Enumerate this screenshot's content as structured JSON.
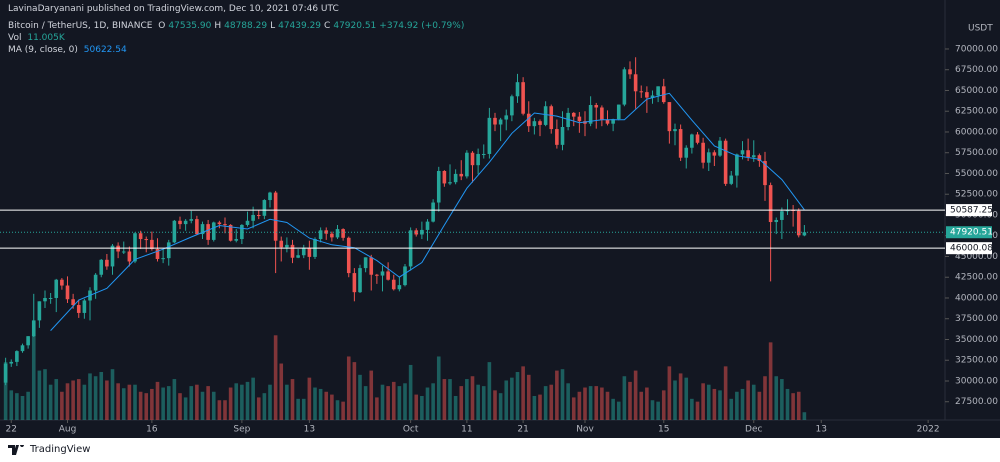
{
  "chart_data": {
    "type": "candlestick",
    "attribution": "LavinaDaryanani published on TradingView.com, Dec 10, 2021 07:46 UTC",
    "symbol": "Bitcoin / TetherUS, 1D, BINANCE",
    "ohlc_legend": [
      {
        "label": "O",
        "value": "47535.90"
      },
      {
        "label": "H",
        "value": "48788.29"
      },
      {
        "label": "L",
        "value": "47439.29"
      },
      {
        "label": "C",
        "value": "47920.51"
      }
    ],
    "change": "+374.92 (+0.79%)",
    "volume_name": "Vol",
    "volume_value": "11.005K",
    "currency": "USDT",
    "footer": "TradingView",
    "up_color": "#26a69a",
    "down_color": "#ef5350",
    "x": [
      "2021-07-21",
      "2021-07-22",
      "2021-07-23",
      "2021-07-24",
      "2021-07-25",
      "2021-07-26",
      "2021-07-27",
      "2021-07-28",
      "2021-07-29",
      "2021-07-30",
      "2021-07-31",
      "2021-08-01",
      "2021-08-02",
      "2021-08-03",
      "2021-08-04",
      "2021-08-05",
      "2021-08-06",
      "2021-08-07",
      "2021-08-08",
      "2021-08-09",
      "2021-08-10",
      "2021-08-11",
      "2021-08-12",
      "2021-08-13",
      "2021-08-14",
      "2021-08-15",
      "2021-08-16",
      "2021-08-17",
      "2021-08-18",
      "2021-08-19",
      "2021-08-20",
      "2021-08-21",
      "2021-08-22",
      "2021-08-23",
      "2021-08-24",
      "2021-08-25",
      "2021-08-26",
      "2021-08-27",
      "2021-08-28",
      "2021-08-29",
      "2021-08-30",
      "2021-08-31",
      "2021-09-01",
      "2021-09-02",
      "2021-09-03",
      "2021-09-04",
      "2021-09-05",
      "2021-09-06",
      "2021-09-07",
      "2021-09-08",
      "2021-09-09",
      "2021-09-10",
      "2021-09-11",
      "2021-09-12",
      "2021-09-13",
      "2021-09-14",
      "2021-09-15",
      "2021-09-16",
      "2021-09-17",
      "2021-09-18",
      "2021-09-19",
      "2021-09-20",
      "2021-09-21",
      "2021-09-22",
      "2021-09-23",
      "2021-09-24",
      "2021-09-25",
      "2021-09-26",
      "2021-09-27",
      "2021-09-28",
      "2021-09-29",
      "2021-09-30",
      "2021-10-01",
      "2021-10-02",
      "2021-10-03",
      "2021-10-04",
      "2021-10-05",
      "2021-10-06",
      "2021-10-07",
      "2021-10-08",
      "2021-10-09",
      "2021-10-10",
      "2021-10-11",
      "2021-10-12",
      "2021-10-13",
      "2021-10-14",
      "2021-10-15",
      "2021-10-16",
      "2021-10-17",
      "2021-10-18",
      "2021-10-19",
      "2021-10-20",
      "2021-10-21",
      "2021-10-22",
      "2021-10-23",
      "2021-10-24",
      "2021-10-25",
      "2021-10-26",
      "2021-10-27",
      "2021-10-28",
      "2021-10-29",
      "2021-10-30",
      "2021-10-31",
      "2021-11-01",
      "2021-11-02",
      "2021-11-03",
      "2021-11-04",
      "2021-11-05",
      "2021-11-06",
      "2021-11-07",
      "2021-11-08",
      "2021-11-09",
      "2021-11-10",
      "2021-11-11",
      "2021-11-12",
      "2021-11-13",
      "2021-11-14",
      "2021-11-15",
      "2021-11-16",
      "2021-11-17",
      "2021-11-18",
      "2021-11-19",
      "2021-11-20",
      "2021-11-21",
      "2021-11-22",
      "2021-11-23",
      "2021-11-24",
      "2021-11-25",
      "2021-11-26",
      "2021-11-27",
      "2021-11-28",
      "2021-11-29",
      "2021-11-30",
      "2021-12-01",
      "2021-12-02",
      "2021-12-03",
      "2021-12-04",
      "2021-12-05",
      "2021-12-06",
      "2021-12-07",
      "2021-12-08",
      "2021-12-09",
      "2021-12-10"
    ],
    "open": [
      29800,
      32100,
      32300,
      33600,
      34300,
      35400,
      37300,
      39600,
      40000,
      40000,
      42200,
      41500,
      39850,
      39150,
      38200,
      39700,
      40900,
      42800,
      44600,
      43800,
      46300,
      45600,
      45600,
      44400,
      47800,
      47100,
      47000,
      45900,
      44700,
      44800,
      46700,
      49300,
      48900,
      49300,
      49500,
      47700,
      48900,
      47000,
      49100,
      48900,
      48800,
      46900,
      47100,
      48800,
      49300,
      50000,
      49900,
      51800,
      52700,
      46900,
      46100,
      46400,
      44850,
      45150,
      46050,
      44950,
      47100,
      48150,
      47750,
      47300,
      48300,
      47250,
      43000,
      40700,
      43600,
      44900,
      42800,
      42700,
      43200,
      42200,
      41050,
      41550,
      43800,
      48150,
      47650,
      48200,
      49200,
      51500,
      55300,
      53800,
      53950,
      54950,
      54650,
      57500,
      56000,
      57350,
      57350,
      61700,
      60900,
      61500,
      62000,
      64300,
      66000,
      62200,
      60700,
      61300,
      60850,
      63100,
      60350,
      58450,
      60600,
      62300,
      61850,
      61300,
      61000,
      63250,
      62950,
      61450,
      61000,
      61550,
      63300,
      67550,
      66950,
      64900,
      64800,
      64150,
      64400,
      65500,
      63600,
      60100,
      60350,
      56900,
      58100,
      59700,
      58700,
      56300,
      57550,
      57150,
      58950,
      53750,
      54750,
      57300,
      57800,
      56950,
      57200,
      56500,
      53600,
      49150,
      49400,
      50450,
      50600,
      50500,
      47535.9
    ],
    "high": [
      32800,
      32600,
      33700,
      34500,
      35400,
      40500,
      39600,
      40900,
      40600,
      42300,
      42400,
      42600,
      40500,
      39800,
      39900,
      41300,
      43000,
      44700,
      45300,
      46500,
      46700,
      46800,
      46200,
      47900,
      48100,
      47400,
      48000,
      47200,
      46000,
      47000,
      49400,
      49800,
      49500,
      50500,
      49900,
      49200,
      49400,
      49200,
      49300,
      49700,
      48900,
      48300,
      48900,
      50400,
      51000,
      50600,
      51900,
      52800,
      52900,
      47400,
      47300,
      47000,
      45900,
      46400,
      46900,
      47300,
      48500,
      48500,
      48000,
      48800,
      48400,
      47400,
      43600,
      44000,
      44900,
      45200,
      42900,
      43900,
      44300,
      42800,
      42600,
      44100,
      48500,
      48400,
      49200,
      49500,
      51900,
      55800,
      55400,
      56100,
      55500,
      56600,
      57800,
      57700,
      58000,
      58500,
      62900,
      62300,
      61700,
      62700,
      64500,
      67000,
      66600,
      63700,
      61700,
      61500,
      63700,
      63300,
      61500,
      62500,
      62900,
      62400,
      62400,
      62500,
      64300,
      63500,
      63200,
      62600,
      61600,
      63300,
      67800,
      68500,
      69000,
      65600,
      65500,
      65000,
      65500,
      66400,
      63600,
      61000,
      60900,
      58400,
      59800,
      60000,
      59300,
      58000,
      57800,
      59400,
      59200,
      55300,
      57400,
      58900,
      59200,
      59000,
      57400,
      57600,
      53900,
      49700,
      50900,
      51900,
      51200,
      50800,
      48788.29
    ],
    "low": [
      29500,
      31700,
      31800,
      33400,
      33900,
      35300,
      36400,
      38800,
      39300,
      38300,
      41000,
      39400,
      38700,
      37600,
      37500,
      37300,
      39900,
      42500,
      43400,
      42800,
      44800,
      45300,
      43800,
      44200,
      45900,
      45500,
      45700,
      44400,
      44200,
      43900,
      46600,
      48300,
      48100,
      49000,
      47600,
      47100,
      46400,
      46800,
      48400,
      47800,
      46800,
      46700,
      46500,
      48600,
      48400,
      49500,
      49500,
      50900,
      43000,
      44400,
      45500,
      44200,
      44800,
      44800,
      43400,
      44700,
      46700,
      47000,
      46800,
      47100,
      46900,
      42500,
      39600,
      40600,
      43100,
      40900,
      41700,
      40800,
      42100,
      40900,
      40800,
      41400,
      43300,
      47400,
      47100,
      46900,
      49100,
      50400,
      53400,
      53600,
      53700,
      54200,
      54400,
      53900,
      54900,
      56800,
      56800,
      60100,
      58900,
      60200,
      61300,
      63500,
      62000,
      60000,
      59700,
      59500,
      60700,
      59800,
      58000,
      57800,
      60200,
      60700,
      59900,
      59500,
      60700,
      60400,
      60700,
      60800,
      60100,
      61400,
      63100,
      66400,
      62800,
      64100,
      62300,
      63400,
      63600,
      63400,
      58600,
      58400,
      56500,
      55600,
      57400,
      58500,
      55600,
      55300,
      55900,
      57000,
      53500,
      53600,
      53300,
      56700,
      56500,
      56400,
      55800,
      51700,
      42000,
      47700,
      47100,
      50000,
      48600,
      47300,
      47439.29
    ],
    "close": [
      32100,
      32300,
      33600,
      34300,
      35400,
      37300,
      39600,
      40000,
      40000,
      42200,
      41500,
      39850,
      39150,
      38200,
      39700,
      40900,
      42800,
      44600,
      43800,
      46300,
      45600,
      45600,
      44400,
      47800,
      47100,
      47000,
      45900,
      44700,
      44800,
      46700,
      49300,
      48900,
      49300,
      49500,
      47700,
      48900,
      47000,
      49100,
      48900,
      48800,
      46900,
      47100,
      48800,
      49300,
      50000,
      49900,
      51800,
      52700,
      46900,
      46100,
      46400,
      44850,
      45150,
      46050,
      44950,
      47100,
      48150,
      47750,
      47300,
      48300,
      47250,
      43000,
      40700,
      43600,
      44900,
      42800,
      42700,
      43200,
      42200,
      41050,
      41550,
      43800,
      48150,
      47650,
      48200,
      49200,
      51500,
      55300,
      53800,
      53950,
      54950,
      54650,
      57500,
      56000,
      57350,
      57350,
      61700,
      60900,
      61500,
      62000,
      64300,
      66000,
      62200,
      60700,
      61300,
      60850,
      63100,
      60350,
      58450,
      60600,
      62300,
      61850,
      61300,
      61000,
      63250,
      62950,
      61450,
      61000,
      61550,
      63300,
      67550,
      66950,
      64900,
      64800,
      64150,
      64400,
      65500,
      63600,
      60100,
      60350,
      56900,
      58100,
      59700,
      58700,
      56300,
      57550,
      57150,
      58950,
      53750,
      54750,
      57300,
      57800,
      56950,
      57200,
      56500,
      53600,
      49150,
      49400,
      50450,
      50600,
      50500,
      47550,
      47920.51
    ],
    "volume": [
      82,
      42,
      38,
      34,
      40,
      120,
      70,
      72,
      50,
      58,
      40,
      52,
      56,
      58,
      50,
      66,
      62,
      68,
      56,
      72,
      52,
      45,
      50,
      50,
      40,
      38,
      44,
      54,
      46,
      48,
      58,
      38,
      32,
      48,
      50,
      40,
      48,
      40,
      28,
      28,
      46,
      52,
      50,
      54,
      60,
      32,
      38,
      50,
      120,
      80,
      50,
      58,
      30,
      30,
      60,
      46,
      44,
      40,
      36,
      28,
      26,
      90,
      82,
      64,
      48,
      70,
      32,
      50,
      48,
      54,
      48,
      52,
      78,
      36,
      34,
      46,
      52,
      90,
      58,
      58,
      34,
      48,
      58,
      62,
      50,
      48,
      82,
      42,
      38,
      56,
      60,
      68,
      76,
      64,
      34,
      36,
      48,
      50,
      70,
      72,
      52,
      32,
      40,
      46,
      48,
      48,
      46,
      40,
      30,
      26,
      62,
      54,
      70,
      40,
      46,
      28,
      26,
      42,
      76,
      56,
      66,
      60,
      30,
      26,
      52,
      50,
      44,
      42,
      76,
      30,
      40,
      44,
      56,
      50,
      40,
      62,
      110,
      62,
      58,
      44,
      38,
      40,
      11.005
    ],
    "ma": {
      "name": "MA (9, close, 0)",
      "value_text": "50622.54",
      "color": "#2196f3",
      "x": [
        "2021-07-29",
        "2021-08-03",
        "2021-08-08",
        "2021-08-13",
        "2021-08-18",
        "2021-08-23",
        "2021-08-28",
        "2021-09-02",
        "2021-09-06",
        "2021-09-09",
        "2021-09-13",
        "2021-09-17",
        "2021-09-21",
        "2021-09-25",
        "2021-09-29",
        "2021-10-03",
        "2021-10-07",
        "2021-10-11",
        "2021-10-15",
        "2021-10-19",
        "2021-10-23",
        "2021-10-27",
        "2021-10-31",
        "2021-11-04",
        "2021-11-08",
        "2021-11-12",
        "2021-11-16",
        "2021-11-20",
        "2021-11-24",
        "2021-11-28",
        "2021-12-02",
        "2021-12-06",
        "2021-12-10"
      ],
      "values": [
        36067,
        39756,
        41167,
        44644,
        45878,
        47344,
        48733,
        48311,
        49478,
        49100,
        47211,
        46411,
        46056,
        44506,
        42522,
        44278,
        48794,
        53228,
        56361,
        59844,
        62289,
        61917,
        61122,
        61461,
        61483,
        63961,
        64661,
        61422,
        58317,
        57128,
        56706,
        54261,
        50622.54
      ]
    },
    "levels": [
      50587.25,
      46000.08
    ],
    "last_price": 47920.51,
    "ylim": [
      25300,
      75900
    ],
    "yticks": [
      {
        "value": 27500,
        "label": "27500.00"
      },
      {
        "value": 30000,
        "label": "30000.00"
      },
      {
        "value": 32500,
        "label": "32500.00"
      },
      {
        "value": 35000,
        "label": "35000.00"
      },
      {
        "value": 37500,
        "label": "37500.00"
      },
      {
        "value": 40000,
        "label": "40000.00"
      },
      {
        "value": 42500,
        "label": "42500.00"
      },
      {
        "value": 45000,
        "label": "45000.00"
      },
      {
        "value": 47500,
        "label": "47500.00"
      },
      {
        "value": 50000,
        "label": "50000.00"
      },
      {
        "value": 52500,
        "label": "52500.00"
      },
      {
        "value": 55000,
        "label": "55000.00"
      },
      {
        "value": 57500,
        "label": "57500.00"
      },
      {
        "value": 60000,
        "label": "60000.00"
      },
      {
        "value": 62500,
        "label": "62500.00"
      },
      {
        "value": 65000,
        "label": "65000.00"
      },
      {
        "value": 67500,
        "label": "67500.00"
      },
      {
        "value": 70000,
        "label": "70000.00"
      }
    ],
    "vlim": [
      0,
      170
    ],
    "xlim": [
      "2021-07-20",
      "2022-01-04"
    ],
    "xticks": [
      {
        "value": "2021-07-22",
        "label": "22"
      },
      {
        "value": "2021-08-01",
        "label": "Aug"
      },
      {
        "value": "2021-08-16",
        "label": "16"
      },
      {
        "value": "2021-09-01",
        "label": "Sep"
      },
      {
        "value": "2021-09-13",
        "label": "13"
      },
      {
        "value": "2021-10-01",
        "label": "Oct"
      },
      {
        "value": "2021-10-11",
        "label": "11"
      },
      {
        "value": "2021-10-21",
        "label": "21"
      },
      {
        "value": "2021-11-01",
        "label": "Nov"
      },
      {
        "value": "2021-11-15",
        "label": "15"
      },
      {
        "value": "2021-12-01",
        "label": "Dec"
      },
      {
        "value": "2021-12-13",
        "label": "13"
      },
      {
        "value": "2022-01-01",
        "label": "2022"
      }
    ]
  }
}
